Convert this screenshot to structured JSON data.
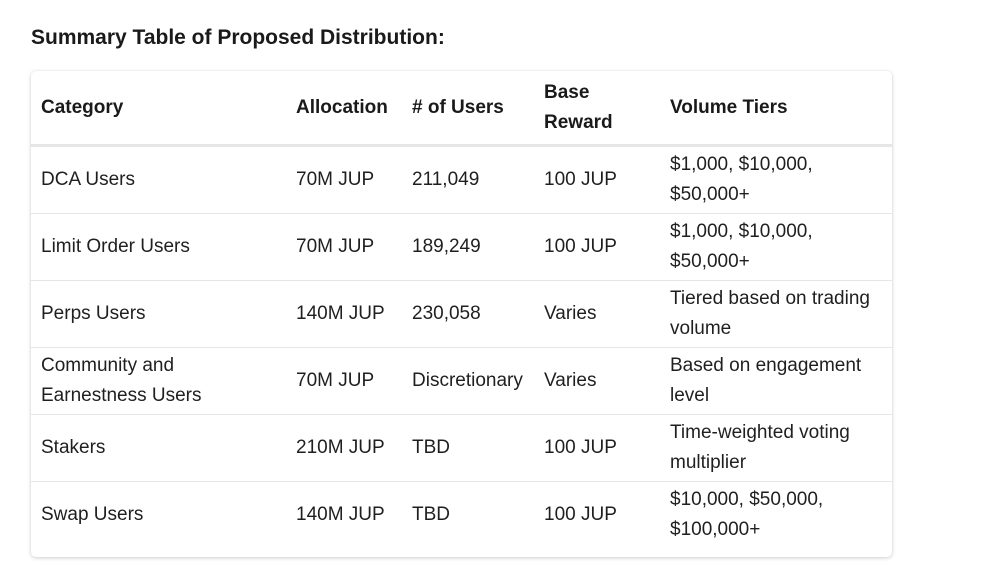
{
  "title": "Summary Table of Proposed Distribution:",
  "table": {
    "headers": [
      "Category",
      "Allocation",
      "# of Users",
      "Base Reward",
      "Volume Tiers"
    ],
    "rows": [
      [
        "DCA Users",
        "70M JUP",
        "211,049",
        "100 JUP",
        "$1,000, $10,000, $50,000+"
      ],
      [
        "Limit Order Users",
        "70M JUP",
        "189,249",
        "100 JUP",
        "$1,000, $10,000, $50,000+"
      ],
      [
        "Perps Users",
        "140M JUP",
        "230,058",
        "Varies",
        "Tiered based on trading volume"
      ],
      [
        "Community and Earnestness Users",
        "70M JUP",
        "Discretionary",
        "Varies",
        "Based on engagement level"
      ],
      [
        "Stakers",
        "210M JUP",
        "TBD",
        "100 JUP",
        "Time-weighted voting multiplier"
      ],
      [
        "Swap Users",
        "140M JUP",
        "TBD",
        "100 JUP",
        "$10,000, $50,000, $100,000+"
      ]
    ]
  }
}
